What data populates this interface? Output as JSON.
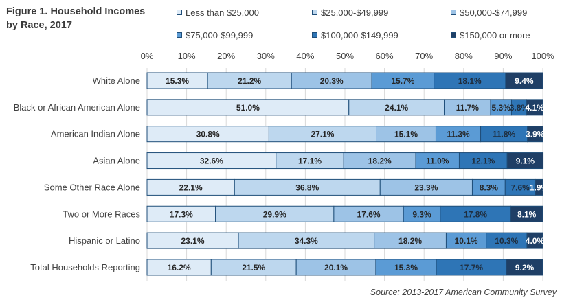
{
  "figure": {
    "title": "Figure 1. Household Incomes by Race, 2017",
    "source": "Source: 2013-2017 American Community Survey"
  },
  "chart_data": {
    "type": "bar",
    "orientation": "horizontal",
    "stacked": "percent",
    "title": "Figure 1. Household Incomes by Race, 2017",
    "xlabel": "",
    "ylabel": "",
    "xlim": [
      0,
      100
    ],
    "x_ticks": [
      "0%",
      "10%",
      "20%",
      "30%",
      "40%",
      "50%",
      "60%",
      "70%",
      "80%",
      "90%",
      "100%"
    ],
    "grid": true,
    "legend_position": "top",
    "categories": [
      "White Alone",
      "Black or African American Alone",
      "American Indian Alone",
      "Asian Alone",
      "Some Other Race Alone",
      "Two or More Races",
      "Hispanic or Latino",
      "Total Households Reporting"
    ],
    "series": [
      {
        "name": "Less than $25,000",
        "color": "#deebf7",
        "values": [
          15.3,
          51.0,
          30.8,
          32.6,
          22.1,
          17.3,
          23.1,
          16.2
        ]
      },
      {
        "name": "$25,000-$49,999",
        "color": "#bdd7ee",
        "values": [
          21.2,
          24.1,
          27.1,
          17.1,
          36.8,
          29.9,
          34.3,
          21.5
        ]
      },
      {
        "name": "$50,000-$74,999",
        "color": "#9dc3e6",
        "values": [
          20.3,
          11.7,
          15.1,
          18.2,
          23.3,
          17.6,
          18.2,
          20.1
        ]
      },
      {
        "name": "$75,000-$99,999",
        "color": "#5b9bd5",
        "values": [
          15.7,
          5.3,
          11.3,
          11.0,
          8.3,
          9.3,
          10.1,
          15.3
        ]
      },
      {
        "name": "$100,000-$149,999",
        "color": "#2e75b6",
        "values": [
          18.1,
          3.8,
          11.8,
          12.1,
          7.6,
          17.8,
          10.3,
          17.7
        ]
      },
      {
        "name": "$150,000 or more",
        "color": "#1f3f66",
        "values": [
          9.4,
          4.1,
          3.9,
          9.1,
          1.9,
          8.1,
          4.0,
          9.2
        ]
      }
    ]
  }
}
